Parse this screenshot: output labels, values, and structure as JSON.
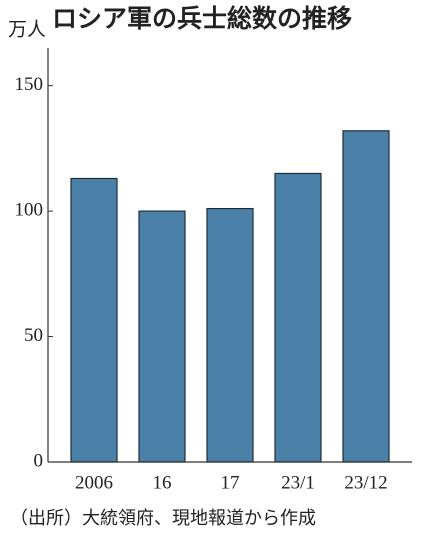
{
  "chart_data": {
    "type": "bar",
    "title": "ロシア軍の兵士総数の推移",
    "y_label": "万人",
    "categories": [
      "2006",
      "16",
      "17",
      "23/1",
      "23/12"
    ],
    "values": [
      113,
      100,
      101,
      115,
      132
    ],
    "color": "#4b80a8",
    "ylim": [
      0,
      165
    ],
    "yticks": [
      0,
      50,
      100,
      150
    ],
    "grid": false,
    "source": "（出所）大統領府、現地報道から作成"
  }
}
